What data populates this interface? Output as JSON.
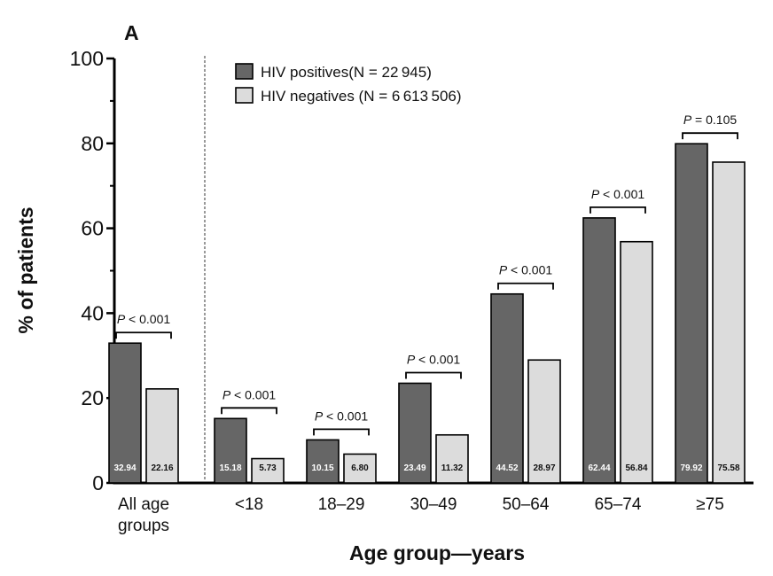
{
  "chart_data": {
    "type": "bar",
    "panel_label": "A",
    "xlabel": "Age group—years",
    "ylabel": "% of patients",
    "ylim": [
      0,
      100
    ],
    "yticks": [
      0,
      20,
      40,
      60,
      80,
      100
    ],
    "categories": [
      "All age groups",
      "<18",
      "18–29",
      "30–49",
      "50–64",
      "65–74",
      "≥75"
    ],
    "category_lines": [
      [
        "All age",
        "groups"
      ],
      [
        "<18"
      ],
      [
        "18–29"
      ],
      [
        "30–49"
      ],
      [
        "50–64"
      ],
      [
        "65–74"
      ],
      [
        "≥75"
      ]
    ],
    "series": [
      {
        "name": "HIV positives(N = 22 945)",
        "color": "#666666",
        "values": [
          32.94,
          15.18,
          10.15,
          23.49,
          44.52,
          62.44,
          79.92
        ],
        "value_labels": [
          "32.94",
          "15.18",
          "10.15",
          "23.49",
          "44.52",
          "62.44",
          "79.92"
        ]
      },
      {
        "name": "HIV negatives (N = 6 613 506)",
        "color": "#dcdcdc",
        "values": [
          22.16,
          5.73,
          6.8,
          11.32,
          28.97,
          56.84,
          75.58
        ],
        "value_labels": [
          "22.16",
          "5.73",
          "6.80",
          "11.32",
          "28.97",
          "56.84",
          "75.58"
        ]
      }
    ],
    "p_values": [
      [
        "P",
        "< 0.001"
      ],
      [
        "P",
        "< 0.001"
      ],
      [
        "P",
        "< 0.001"
      ],
      [
        "P",
        "< 0.001"
      ],
      [
        "P",
        "< 0.001"
      ],
      [
        "P",
        "< 0.001"
      ],
      [
        "P",
        "= 0.105"
      ]
    ],
    "legend_position": "top-left",
    "grid": false
  }
}
